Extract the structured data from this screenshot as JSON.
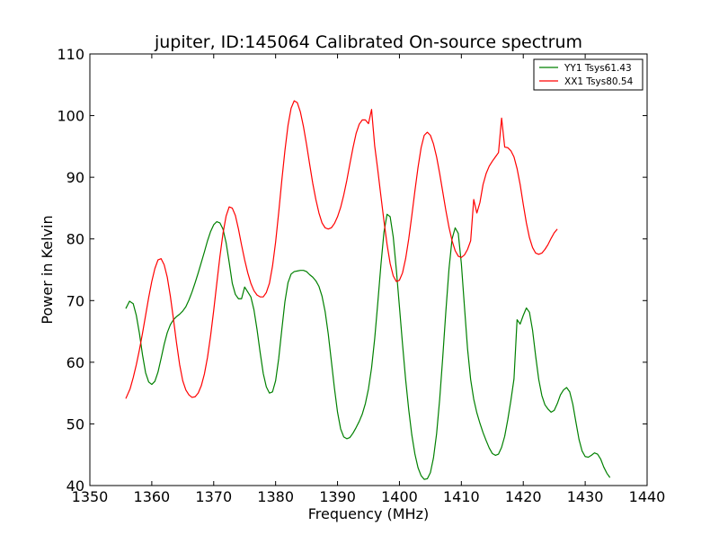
{
  "chart_data": {
    "type": "line",
    "title": "jupiter, ID:145064 Calibrated On-source spectrum",
    "xlabel": "Frequency (MHz)",
    "ylabel": "Power in Kelvin",
    "xlim": [
      1350,
      1440
    ],
    "ylim": [
      40,
      110
    ],
    "xticks": [
      1350,
      1360,
      1370,
      1380,
      1390,
      1400,
      1410,
      1420,
      1430,
      1440
    ],
    "yticks": [
      40,
      50,
      60,
      70,
      80,
      90,
      100,
      110
    ],
    "legend_position": "top-right",
    "grid": false,
    "series": [
      {
        "name": "YY1 Tsys61.43",
        "color": "#008000",
        "points": [
          [
            1355.8,
            68.7
          ],
          [
            1356.4,
            69.9
          ],
          [
            1357.0,
            69.5
          ],
          [
            1357.5,
            67.6
          ],
          [
            1358.0,
            64.7
          ],
          [
            1358.5,
            61.2
          ],
          [
            1359.0,
            58.3
          ],
          [
            1359.5,
            56.8
          ],
          [
            1360.0,
            56.4
          ],
          [
            1360.5,
            56.9
          ],
          [
            1361.0,
            58.4
          ],
          [
            1361.5,
            60.6
          ],
          [
            1362.0,
            62.9
          ],
          [
            1362.5,
            64.8
          ],
          [
            1363.0,
            66.1
          ],
          [
            1363.5,
            66.9
          ],
          [
            1364.0,
            67.4
          ],
          [
            1364.5,
            67.8
          ],
          [
            1365.0,
            68.3
          ],
          [
            1365.5,
            69.0
          ],
          [
            1366.0,
            70.1
          ],
          [
            1366.5,
            71.4
          ],
          [
            1367.0,
            72.9
          ],
          [
            1367.5,
            74.5
          ],
          [
            1368.0,
            76.2
          ],
          [
            1368.5,
            77.9
          ],
          [
            1369.0,
            79.7
          ],
          [
            1369.5,
            81.2
          ],
          [
            1370.0,
            82.3
          ],
          [
            1370.5,
            82.8
          ],
          [
            1371.0,
            82.6
          ],
          [
            1371.5,
            81.6
          ],
          [
            1372.0,
            79.4
          ],
          [
            1372.5,
            76.2
          ],
          [
            1373.0,
            72.8
          ],
          [
            1373.5,
            71.0
          ],
          [
            1374.0,
            70.3
          ],
          [
            1374.5,
            70.3
          ],
          [
            1375.0,
            72.2
          ],
          [
            1375.5,
            71.4
          ],
          [
            1376.0,
            70.6
          ],
          [
            1376.5,
            68.5
          ],
          [
            1377.0,
            65.3
          ],
          [
            1377.5,
            61.6
          ],
          [
            1378.0,
            58.2
          ],
          [
            1378.5,
            56.0
          ],
          [
            1379.0,
            55.0
          ],
          [
            1379.5,
            55.2
          ],
          [
            1380.0,
            57.0
          ],
          [
            1380.5,
            60.6
          ],
          [
            1381.0,
            65.3
          ],
          [
            1381.5,
            69.8
          ],
          [
            1382.0,
            72.9
          ],
          [
            1382.5,
            74.3
          ],
          [
            1383.0,
            74.7
          ],
          [
            1383.5,
            74.8
          ],
          [
            1384.0,
            74.9
          ],
          [
            1384.5,
            74.9
          ],
          [
            1385.0,
            74.7
          ],
          [
            1385.5,
            74.2
          ],
          [
            1386.0,
            73.8
          ],
          [
            1386.5,
            73.2
          ],
          [
            1387.0,
            72.3
          ],
          [
            1387.5,
            70.7
          ],
          [
            1388.0,
            68.2
          ],
          [
            1388.5,
            64.6
          ],
          [
            1389.0,
            60.2
          ],
          [
            1389.5,
            55.8
          ],
          [
            1390.0,
            51.9
          ],
          [
            1390.5,
            49.2
          ],
          [
            1391.0,
            47.9
          ],
          [
            1391.5,
            47.6
          ],
          [
            1392.0,
            47.8
          ],
          [
            1392.5,
            48.5
          ],
          [
            1393.0,
            49.4
          ],
          [
            1393.5,
            50.4
          ],
          [
            1394.0,
            51.6
          ],
          [
            1394.5,
            53.3
          ],
          [
            1395.0,
            55.7
          ],
          [
            1395.5,
            59.1
          ],
          [
            1396.0,
            63.8
          ],
          [
            1396.5,
            69.6
          ],
          [
            1397.0,
            75.7
          ],
          [
            1397.5,
            81.1
          ],
          [
            1398.0,
            84.0
          ],
          [
            1398.5,
            83.6
          ],
          [
            1399.0,
            80.3
          ],
          [
            1399.5,
            75.0
          ],
          [
            1400.0,
            69.0
          ],
          [
            1400.5,
            62.9
          ],
          [
            1401.0,
            57.2
          ],
          [
            1401.5,
            52.3
          ],
          [
            1402.0,
            48.2
          ],
          [
            1402.5,
            45.1
          ],
          [
            1403.0,
            42.9
          ],
          [
            1403.5,
            41.6
          ],
          [
            1404.0,
            41.0
          ],
          [
            1404.5,
            41.1
          ],
          [
            1405.0,
            42.1
          ],
          [
            1405.5,
            44.5
          ],
          [
            1406.0,
            48.4
          ],
          [
            1406.5,
            54.0
          ],
          [
            1407.0,
            60.9
          ],
          [
            1407.5,
            68.3
          ],
          [
            1408.0,
            75.1
          ],
          [
            1408.5,
            80.0
          ],
          [
            1409.0,
            81.8
          ],
          [
            1409.5,
            80.9
          ],
          [
            1410.0,
            76.0
          ],
          [
            1410.5,
            69.0
          ],
          [
            1411.0,
            62.2
          ],
          [
            1411.5,
            57.2
          ],
          [
            1412.0,
            54.0
          ],
          [
            1412.5,
            51.8
          ],
          [
            1413.0,
            50.1
          ],
          [
            1413.5,
            48.6
          ],
          [
            1414.0,
            47.3
          ],
          [
            1414.5,
            46.1
          ],
          [
            1415.0,
            45.2
          ],
          [
            1415.5,
            44.9
          ],
          [
            1416.0,
            45.1
          ],
          [
            1416.5,
            46.2
          ],
          [
            1417.0,
            48.0
          ],
          [
            1417.5,
            50.7
          ],
          [
            1418.0,
            53.8
          ],
          [
            1418.5,
            57.3
          ],
          [
            1419.0,
            66.9
          ],
          [
            1419.5,
            66.2
          ],
          [
            1420.0,
            67.6
          ],
          [
            1420.5,
            68.8
          ],
          [
            1421.0,
            68.1
          ],
          [
            1421.5,
            65.2
          ],
          [
            1422.0,
            61.0
          ],
          [
            1422.5,
            57.2
          ],
          [
            1423.0,
            54.6
          ],
          [
            1423.5,
            53.1
          ],
          [
            1424.0,
            52.4
          ],
          [
            1424.5,
            51.9
          ],
          [
            1425.0,
            52.2
          ],
          [
            1425.5,
            53.3
          ],
          [
            1426.0,
            54.7
          ],
          [
            1426.5,
            55.5
          ],
          [
            1427.0,
            55.9
          ],
          [
            1427.5,
            55.2
          ],
          [
            1428.0,
            53.2
          ],
          [
            1428.5,
            50.3
          ],
          [
            1429.0,
            47.5
          ],
          [
            1429.5,
            45.6
          ],
          [
            1430.0,
            44.7
          ],
          [
            1430.5,
            44.6
          ],
          [
            1431.0,
            44.9
          ],
          [
            1431.5,
            45.3
          ],
          [
            1432.0,
            45.1
          ],
          [
            1432.5,
            44.3
          ],
          [
            1433.0,
            43.0
          ],
          [
            1433.5,
            42.0
          ],
          [
            1434.0,
            41.3
          ]
        ]
      },
      {
        "name": "XX1 Tsys80.54",
        "color": "#ff0000",
        "points": [
          [
            1355.8,
            54.1
          ],
          [
            1356.5,
            55.7
          ],
          [
            1357.0,
            57.5
          ],
          [
            1357.5,
            59.6
          ],
          [
            1358.0,
            62.0
          ],
          [
            1358.5,
            64.7
          ],
          [
            1359.0,
            67.6
          ],
          [
            1359.5,
            70.5
          ],
          [
            1360.0,
            73.1
          ],
          [
            1360.5,
            75.2
          ],
          [
            1361.0,
            76.6
          ],
          [
            1361.5,
            76.8
          ],
          [
            1362.0,
            75.8
          ],
          [
            1362.5,
            73.8
          ],
          [
            1363.0,
            70.7
          ],
          [
            1363.5,
            67.0
          ],
          [
            1364.0,
            63.1
          ],
          [
            1364.5,
            59.6
          ],
          [
            1365.0,
            57.0
          ],
          [
            1365.5,
            55.5
          ],
          [
            1366.0,
            54.7
          ],
          [
            1366.5,
            54.3
          ],
          [
            1367.0,
            54.4
          ],
          [
            1367.5,
            55.0
          ],
          [
            1368.0,
            56.2
          ],
          [
            1368.5,
            58.1
          ],
          [
            1369.0,
            60.8
          ],
          [
            1369.5,
            64.3
          ],
          [
            1370.0,
            68.4
          ],
          [
            1370.5,
            72.8
          ],
          [
            1371.0,
            77.1
          ],
          [
            1371.5,
            80.9
          ],
          [
            1372.0,
            83.7
          ],
          [
            1372.5,
            85.2
          ],
          [
            1373.0,
            85.0
          ],
          [
            1373.5,
            83.8
          ],
          [
            1374.0,
            81.6
          ],
          [
            1374.5,
            79.0
          ],
          [
            1375.0,
            76.6
          ],
          [
            1375.5,
            74.5
          ],
          [
            1376.0,
            72.8
          ],
          [
            1376.5,
            71.6
          ],
          [
            1377.0,
            70.9
          ],
          [
            1377.5,
            70.6
          ],
          [
            1378.0,
            70.6
          ],
          [
            1378.5,
            71.3
          ],
          [
            1379.0,
            72.8
          ],
          [
            1379.5,
            75.6
          ],
          [
            1380.0,
            79.5
          ],
          [
            1380.5,
            84.3
          ],
          [
            1381.0,
            89.5
          ],
          [
            1381.5,
            94.3
          ],
          [
            1382.0,
            98.4
          ],
          [
            1382.5,
            101.2
          ],
          [
            1383.0,
            102.4
          ],
          [
            1383.5,
            102.1
          ],
          [
            1384.0,
            100.6
          ],
          [
            1384.5,
            98.2
          ],
          [
            1385.0,
            95.3
          ],
          [
            1385.5,
            92.1
          ],
          [
            1386.0,
            89.0
          ],
          [
            1386.5,
            86.4
          ],
          [
            1387.0,
            84.2
          ],
          [
            1387.5,
            82.6
          ],
          [
            1388.0,
            81.8
          ],
          [
            1388.5,
            81.6
          ],
          [
            1389.0,
            81.8
          ],
          [
            1389.5,
            82.5
          ],
          [
            1390.0,
            83.6
          ],
          [
            1390.5,
            85.1
          ],
          [
            1391.0,
            87.1
          ],
          [
            1391.5,
            89.5
          ],
          [
            1392.0,
            92.2
          ],
          [
            1392.5,
            94.8
          ],
          [
            1393.0,
            97.1
          ],
          [
            1393.5,
            98.6
          ],
          [
            1394.0,
            99.3
          ],
          [
            1394.5,
            99.3
          ],
          [
            1395.0,
            98.7
          ],
          [
            1395.5,
            101.0
          ],
          [
            1396.0,
            95.1
          ],
          [
            1396.5,
            91.2
          ],
          [
            1397.0,
            87.0
          ],
          [
            1397.5,
            82.9
          ],
          [
            1398.0,
            79.1
          ],
          [
            1398.5,
            76.0
          ],
          [
            1399.0,
            74.0
          ],
          [
            1399.5,
            73.1
          ],
          [
            1400.0,
            73.3
          ],
          [
            1400.5,
            74.5
          ],
          [
            1401.0,
            76.8
          ],
          [
            1401.5,
            80.0
          ],
          [
            1402.0,
            83.8
          ],
          [
            1402.5,
            87.8
          ],
          [
            1403.0,
            91.6
          ],
          [
            1403.5,
            94.8
          ],
          [
            1404.0,
            96.8
          ],
          [
            1404.5,
            97.3
          ],
          [
            1405.0,
            96.8
          ],
          [
            1405.5,
            95.4
          ],
          [
            1406.0,
            93.3
          ],
          [
            1406.5,
            90.6
          ],
          [
            1407.0,
            87.6
          ],
          [
            1407.5,
            84.6
          ],
          [
            1408.0,
            81.9
          ],
          [
            1408.5,
            79.7
          ],
          [
            1409.0,
            78.1
          ],
          [
            1409.5,
            77.2
          ],
          [
            1410.0,
            77.0
          ],
          [
            1410.5,
            77.4
          ],
          [
            1411.0,
            78.3
          ],
          [
            1411.5,
            79.7
          ],
          [
            1412.0,
            86.4
          ],
          [
            1412.5,
            84.2
          ],
          [
            1413.0,
            85.9
          ],
          [
            1413.5,
            88.8
          ],
          [
            1414.0,
            90.6
          ],
          [
            1414.5,
            91.8
          ],
          [
            1415.0,
            92.6
          ],
          [
            1415.5,
            93.3
          ],
          [
            1416.0,
            94.0
          ],
          [
            1416.5,
            99.6
          ],
          [
            1417.0,
            94.9
          ],
          [
            1417.5,
            94.8
          ],
          [
            1418.0,
            94.3
          ],
          [
            1418.5,
            93.3
          ],
          [
            1419.0,
            91.4
          ],
          [
            1419.5,
            88.8
          ],
          [
            1420.0,
            85.6
          ],
          [
            1420.5,
            82.6
          ],
          [
            1421.0,
            80.2
          ],
          [
            1421.5,
            78.6
          ],
          [
            1422.0,
            77.7
          ],
          [
            1422.5,
            77.5
          ],
          [
            1423.0,
            77.7
          ],
          [
            1423.5,
            78.3
          ],
          [
            1424.0,
            79.1
          ],
          [
            1424.5,
            80.1
          ],
          [
            1425.0,
            81.0
          ],
          [
            1425.5,
            81.6
          ]
        ]
      }
    ]
  }
}
